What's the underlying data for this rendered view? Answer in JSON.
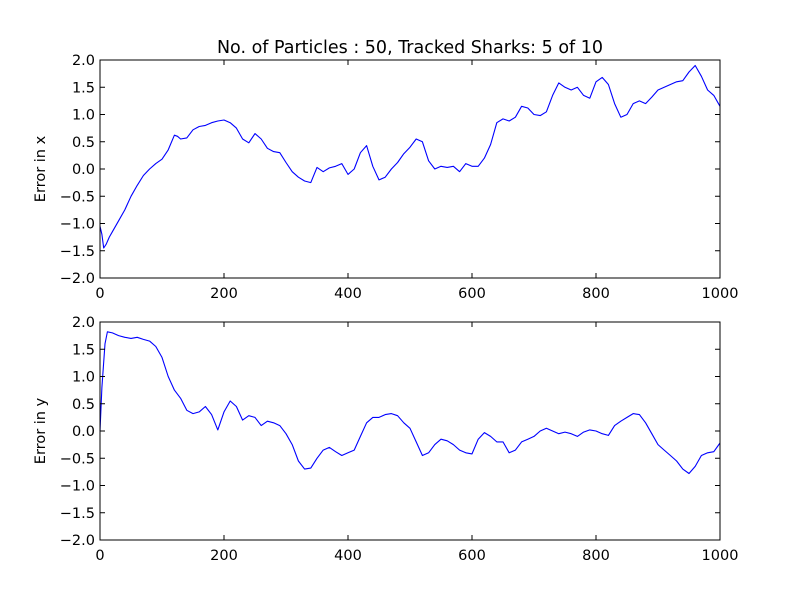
{
  "figure": {
    "title": "No. of Particles : 50, Tracked Sharks: 5 of 10"
  },
  "chart_data": [
    {
      "type": "line",
      "title": "No. of Particles : 50, Tracked Sharks: 5 of 10",
      "xlabel": "",
      "ylabel": "Error in x",
      "xlim": [
        0,
        1000
      ],
      "ylim": [
        -2.0,
        2.0
      ],
      "xticks": [
        0,
        200,
        400,
        600,
        800,
        1000
      ],
      "yticks": [
        -2.0,
        -1.5,
        -1.0,
        -0.5,
        0.0,
        0.5,
        1.0,
        1.5,
        2.0
      ],
      "xtick_labels": [
        "0",
        "200",
        "400",
        "600",
        "800",
        "1000"
      ],
      "ytick_labels": [
        "−2.0",
        "−1.5",
        "−1.0",
        "−0.5",
        "0.0",
        "0.5",
        "1.0",
        "1.5",
        "2.0"
      ],
      "grid": false,
      "line_color": "#0000ff",
      "series": [
        {
          "x": [
            0,
            3,
            6,
            10,
            15,
            20,
            30,
            40,
            50,
            60,
            70,
            80,
            90,
            100,
            110,
            120,
            125,
            130,
            140,
            150,
            160,
            170,
            180,
            190,
            200,
            210,
            220,
            230,
            240,
            250,
            260,
            270,
            280,
            290,
            300,
            310,
            320,
            330,
            340,
            350,
            360,
            370,
            380,
            390,
            400,
            410,
            420,
            430,
            440,
            450,
            460,
            470,
            480,
            490,
            500,
            510,
            520,
            530,
            540,
            550,
            560,
            570,
            580,
            590,
            600,
            610,
            620,
            630,
            640,
            650,
            660,
            670,
            680,
            690,
            700,
            710,
            720,
            730,
            740,
            750,
            760,
            770,
            780,
            790,
            800,
            810,
            820,
            830,
            840,
            850,
            860,
            870,
            880,
            890,
            900,
            910,
            920,
            930,
            940,
            950,
            960,
            970,
            980,
            990,
            1000
          ],
          "values": [
            -1.05,
            -1.2,
            -1.45,
            -1.38,
            -1.25,
            -1.15,
            -0.95,
            -0.75,
            -0.5,
            -0.3,
            -0.12,
            0.0,
            0.1,
            0.18,
            0.35,
            0.62,
            0.6,
            0.55,
            0.57,
            0.72,
            0.78,
            0.8,
            0.85,
            0.88,
            0.9,
            0.85,
            0.75,
            0.55,
            0.48,
            0.65,
            0.55,
            0.38,
            0.32,
            0.3,
            0.12,
            -0.05,
            -0.15,
            -0.22,
            -0.25,
            0.03,
            -0.05,
            0.02,
            0.05,
            0.1,
            -0.1,
            0.0,
            0.3,
            0.43,
            0.05,
            -0.2,
            -0.15,
            0.0,
            0.12,
            0.28,
            0.4,
            0.55,
            0.5,
            0.15,
            0.0,
            0.05,
            0.03,
            0.05,
            -0.05,
            0.1,
            0.05,
            0.05,
            0.2,
            0.45,
            0.85,
            0.92,
            0.88,
            0.95,
            1.15,
            1.12,
            1.0,
            0.98,
            1.05,
            1.35,
            1.58,
            1.5,
            1.45,
            1.5,
            1.35,
            1.3,
            1.6,
            1.68,
            1.55,
            1.2,
            0.95,
            1.0,
            1.2,
            1.25,
            1.2,
            1.32,
            1.45,
            1.5,
            1.55,
            1.6,
            1.62,
            1.78,
            1.9,
            1.7,
            1.45,
            1.35,
            1.15
          ]
        }
      ]
    },
    {
      "type": "line",
      "title": "",
      "xlabel": "",
      "ylabel": "Error in y",
      "xlim": [
        0,
        1000
      ],
      "ylim": [
        -2.0,
        2.0
      ],
      "xticks": [
        0,
        200,
        400,
        600,
        800,
        1000
      ],
      "yticks": [
        -2.0,
        -1.5,
        -1.0,
        -0.5,
        0.0,
        0.5,
        1.0,
        1.5,
        2.0
      ],
      "xtick_labels": [
        "0",
        "200",
        "400",
        "600",
        "800",
        "1000"
      ],
      "ytick_labels": [
        "−2.0",
        "−1.5",
        "−1.0",
        "−0.5",
        "0.0",
        "0.5",
        "1.0",
        "1.5",
        "2.0"
      ],
      "grid": false,
      "line_color": "#0000ff",
      "series": [
        {
          "x": [
            0,
            3,
            8,
            12,
            20,
            30,
            40,
            50,
            60,
            70,
            80,
            90,
            100,
            110,
            120,
            130,
            140,
            150,
            160,
            170,
            180,
            190,
            200,
            210,
            220,
            230,
            240,
            250,
            260,
            270,
            280,
            290,
            300,
            310,
            320,
            330,
            340,
            350,
            360,
            370,
            380,
            390,
            400,
            410,
            420,
            430,
            440,
            450,
            460,
            470,
            480,
            490,
            500,
            510,
            520,
            530,
            540,
            550,
            560,
            570,
            580,
            590,
            600,
            610,
            620,
            630,
            640,
            650,
            660,
            670,
            680,
            690,
            700,
            710,
            720,
            730,
            740,
            750,
            760,
            770,
            780,
            790,
            800,
            810,
            820,
            830,
            840,
            850,
            860,
            870,
            880,
            890,
            900,
            910,
            920,
            930,
            940,
            950,
            960,
            970,
            980,
            990,
            1000
          ],
          "values": [
            0.0,
            0.8,
            1.6,
            1.82,
            1.8,
            1.75,
            1.72,
            1.7,
            1.72,
            1.68,
            1.65,
            1.55,
            1.35,
            1.0,
            0.75,
            0.6,
            0.38,
            0.32,
            0.35,
            0.45,
            0.3,
            0.02,
            0.35,
            0.55,
            0.45,
            0.2,
            0.28,
            0.25,
            0.1,
            0.18,
            0.15,
            0.1,
            -0.05,
            -0.25,
            -0.55,
            -0.7,
            -0.68,
            -0.5,
            -0.35,
            -0.3,
            -0.38,
            -0.45,
            -0.4,
            -0.35,
            -0.1,
            0.15,
            0.25,
            0.25,
            0.3,
            0.32,
            0.28,
            0.15,
            0.05,
            -0.2,
            -0.45,
            -0.4,
            -0.25,
            -0.15,
            -0.18,
            -0.25,
            -0.35,
            -0.4,
            -0.42,
            -0.15,
            -0.03,
            -0.1,
            -0.2,
            -0.2,
            -0.4,
            -0.35,
            -0.2,
            -0.15,
            -0.1,
            0.0,
            0.05,
            0.0,
            -0.05,
            -0.02,
            -0.05,
            -0.1,
            -0.02,
            0.02,
            0.0,
            -0.05,
            -0.08,
            0.1,
            0.18,
            0.25,
            0.32,
            0.3,
            0.15,
            -0.05,
            -0.25,
            -0.35,
            -0.45,
            -0.55,
            -0.7,
            -0.78,
            -0.65,
            -0.45,
            -0.4,
            -0.38,
            -0.22
          ]
        }
      ]
    }
  ]
}
